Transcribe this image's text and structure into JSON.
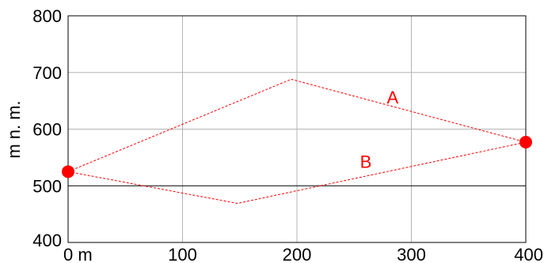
{
  "chart_data": {
    "type": "line",
    "title": "",
    "xlabel": "",
    "ylabel": "m n. m.",
    "xlim": [
      0,
      400
    ],
    "ylim": [
      400,
      800
    ],
    "x_ticks": [
      {
        "value": 0,
        "label": "0 m"
      },
      {
        "value": 100,
        "label": "100"
      },
      {
        "value": 200,
        "label": "200"
      },
      {
        "value": 300,
        "label": "300"
      },
      {
        "value": 400,
        "label": "400"
      }
    ],
    "y_ticks": [
      {
        "value": 400,
        "label": "400"
      },
      {
        "value": 500,
        "label": "500"
      },
      {
        "value": 600,
        "label": "600"
      },
      {
        "value": 700,
        "label": "700"
      },
      {
        "value": 800,
        "label": "800"
      }
    ],
    "grid": true,
    "reference_line_y": 500,
    "colors": {
      "route": "#ff0000",
      "grid": "#b4b4b4",
      "reference": "#000000",
      "frame": "#000000"
    },
    "series": [
      {
        "name": "A",
        "x": [
          0,
          195,
          400
        ],
        "y": [
          525,
          688,
          577
        ]
      },
      {
        "name": "B",
        "x": [
          0,
          148,
          400
        ],
        "y": [
          525,
          469,
          577
        ]
      }
    ],
    "endpoints": [
      {
        "x": 0,
        "y": 525
      },
      {
        "x": 400,
        "y": 577
      }
    ]
  }
}
